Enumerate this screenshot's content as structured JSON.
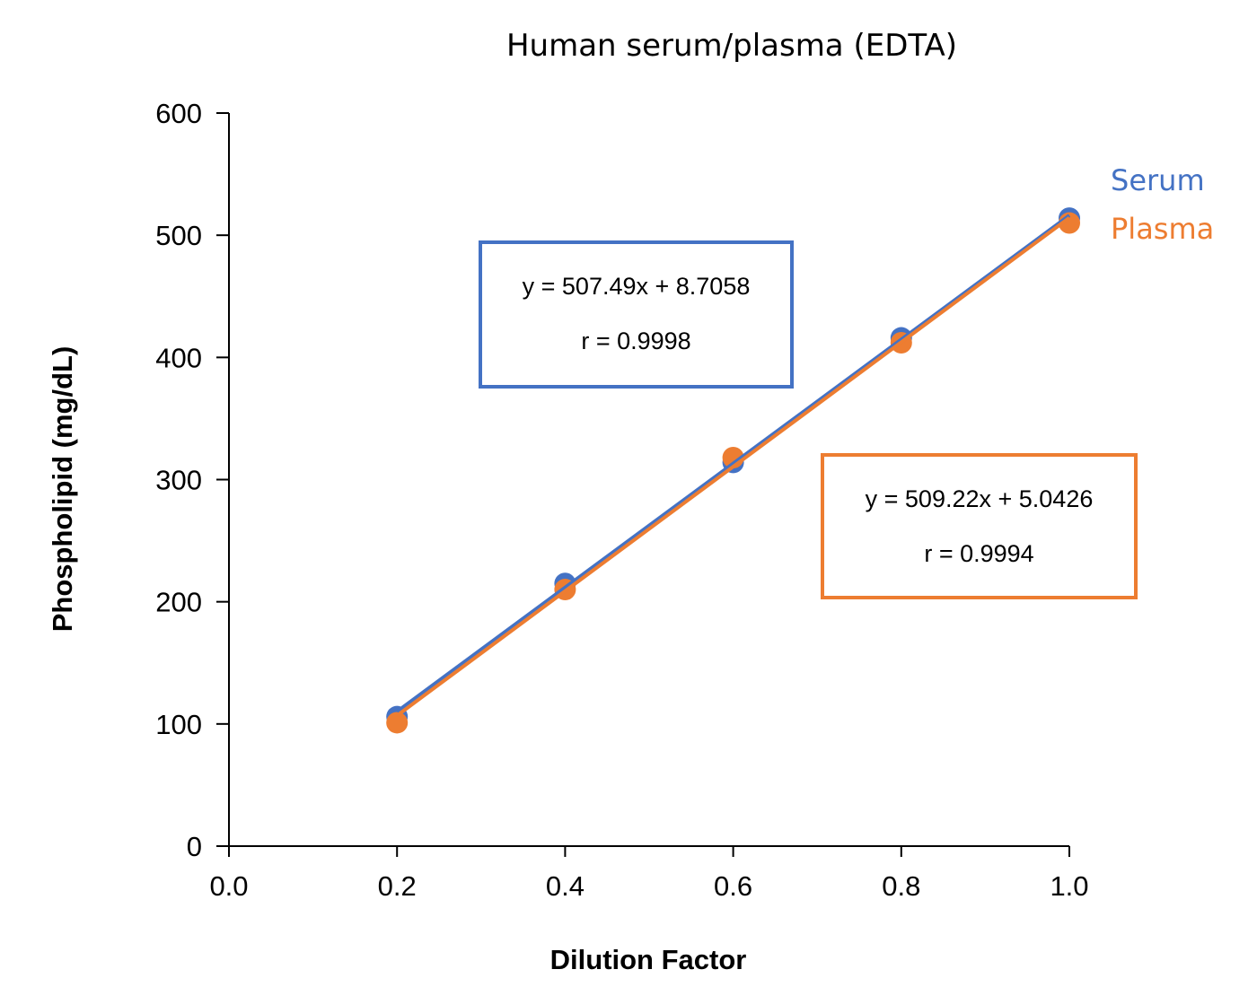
{
  "chart_data": {
    "type": "scatter",
    "title": "Human serum/plasma (EDTA)",
    "xlabel": "Dilution Factor",
    "ylabel": "Phospholipid (mg/dL)",
    "xlim": [
      0.0,
      1.0
    ],
    "ylim": [
      0,
      600
    ],
    "xticks": [
      "0.0",
      "0.2",
      "0.4",
      "0.6",
      "0.8",
      "1.0"
    ],
    "yticks": [
      "0",
      "100",
      "200",
      "300",
      "400",
      "500",
      "600"
    ],
    "grid": false,
    "legend_position": "right",
    "x": [
      0.2,
      0.4,
      0.6,
      0.8,
      1.0
    ],
    "series": [
      {
        "name": "Serum",
        "color": "#4472C4",
        "values": [
          106,
          215,
          314,
          416,
          514
        ],
        "trendline": {
          "slope": 507.49,
          "intercept": 8.7058,
          "equation": "y = 507.49x + 8.7058",
          "r": "r = 0.9998"
        }
      },
      {
        "name": "Plasma",
        "color": "#ED7D31",
        "values": [
          101,
          210,
          318,
          412,
          510
        ],
        "trendline": {
          "slope": 509.22,
          "intercept": 5.0426,
          "equation": "y = 509.22x + 5.0426",
          "r": "r = 0.9994"
        }
      }
    ]
  }
}
